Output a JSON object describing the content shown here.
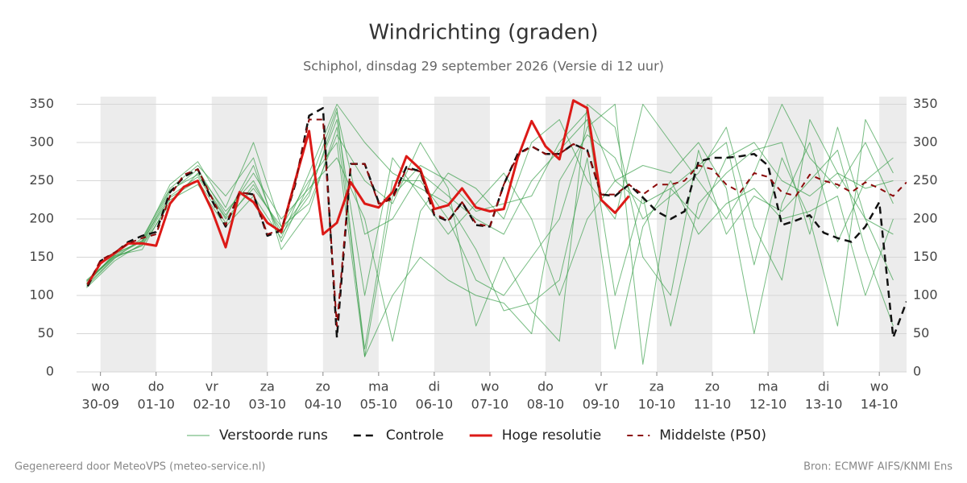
{
  "chart_data": {
    "type": "line",
    "title": "Windrichting (graden)",
    "subtitle": "Schiphol, dinsdag 29 september 2026 (Versie di 12 uur)",
    "xlim": [
      -0.43,
      14.49
    ],
    "ylim": [
      0,
      360
    ],
    "yticks": [
      0,
      50,
      100,
      150,
      200,
      250,
      300,
      350
    ],
    "xticks": [
      {
        "value": 0,
        "label": "wo"
      },
      {
        "value": 1,
        "label": "do"
      },
      {
        "value": 2,
        "label": "vr"
      },
      {
        "value": 3,
        "label": "za"
      },
      {
        "value": 4,
        "label": "zo"
      },
      {
        "value": 5,
        "label": "ma"
      },
      {
        "value": 6,
        "label": "di"
      },
      {
        "value": 7,
        "label": "wo"
      },
      {
        "value": 8,
        "label": "do"
      },
      {
        "value": 9,
        "label": "vr"
      },
      {
        "value": 10,
        "label": "za"
      },
      {
        "value": 11,
        "label": "zo"
      },
      {
        "value": 12,
        "label": "ma"
      },
      {
        "value": 13,
        "label": "di"
      },
      {
        "value": 14,
        "label": "wo"
      }
    ],
    "xtick_dates": [
      "30-09",
      "01-10",
      "02-10",
      "03-10",
      "04-10",
      "05-10",
      "06-10",
      "07-10",
      "08-10",
      "09-10",
      "10-10",
      "11-10",
      "12-10",
      "13-10",
      "14-10"
    ],
    "grid": true,
    "legend_position": "bottom",
    "ensemble": {
      "name": "Verstoorde runs",
      "color": "#2f9a41",
      "x": [
        -0.25,
        0.25,
        0.75,
        1.25,
        1.75,
        2.25,
        2.75,
        3.25,
        3.75,
        4.25,
        4.75,
        5.25,
        5.75,
        6.25,
        6.75,
        7.25,
        7.75,
        8.25,
        8.75,
        9.25,
        9.75,
        10.25,
        10.75,
        11.25,
        11.75,
        12.25,
        12.75,
        13.25,
        13.75,
        14.25
      ],
      "members": [
        [
          115,
          155,
          170,
          230,
          255,
          200,
          240,
          190,
          250,
          300,
          20,
          230,
          270,
          250,
          210,
          220,
          230,
          300,
          340,
          250,
          220,
          240,
          200,
          280,
          300,
          250,
          230,
          260,
          240,
          250
        ],
        [
          118,
          150,
          165,
          220,
          260,
          210,
          250,
          180,
          230,
          340,
          180,
          200,
          260,
          230,
          200,
          180,
          250,
          290,
          330,
          100,
          230,
          60,
          220,
          260,
          290,
          300,
          180,
          320,
          200,
          120
        ],
        [
          112,
          148,
          175,
          240,
          270,
          230,
          280,
          160,
          210,
          320,
          30,
          250,
          250,
          200,
          120,
          100,
          150,
          200,
          320,
          350,
          10,
          240,
          270,
          300,
          140,
          280,
          200,
          60,
          330,
          260
        ],
        [
          120,
          152,
          160,
          225,
          245,
          190,
          230,
          175,
          260,
          350,
          300,
          260,
          240,
          220,
          160,
          80,
          90,
          120,
          280,
          30,
          190,
          250,
          180,
          220,
          240,
          200,
          210,
          230,
          100,
          200
        ],
        [
          110,
          145,
          168,
          235,
          265,
          205,
          260,
          200,
          240,
          280,
          200,
          40,
          210,
          260,
          240,
          200,
          300,
          330,
          250,
          200,
          350,
          300,
          250,
          200,
          260,
          350,
          280,
          240,
          300,
          220
        ],
        [
          116,
          153,
          172,
          245,
          275,
          215,
          300,
          190,
          220,
          310,
          250,
          220,
          300,
          240,
          60,
          150,
          80,
          40,
          350,
          320,
          150,
          100,
          290,
          180,
          230,
          210,
          250,
          290,
          160,
          60
        ],
        [
          114,
          149,
          166,
          228,
          250,
          195,
          245,
          185,
          235,
          330,
          100,
          280,
          230,
          180,
          220,
          260,
          200,
          100,
          200,
          250,
          270,
          260,
          300,
          240,
          50,
          220,
          300,
          170,
          250,
          280
        ],
        [
          119,
          151,
          171,
          238,
          258,
          202,
          270,
          170,
          245,
          345,
          20,
          100,
          150,
          120,
          100,
          90,
          50,
          250,
          310,
          280,
          200,
          230,
          260,
          320,
          190,
          120,
          330,
          260,
          200,
          180
        ]
      ]
    },
    "series": [
      {
        "name": "Controle",
        "color": "#111111",
        "dash": "9 6",
        "width": 2.5,
        "x": [
          -0.23,
          0,
          0.25,
          0.5,
          0.75,
          1,
          1.25,
          1.5,
          1.75,
          2,
          2.25,
          2.5,
          2.75,
          3,
          3.25,
          3.5,
          3.75,
          4,
          4.25,
          4.5,
          4.75,
          5,
          5.25,
          5.5,
          5.75,
          6,
          6.25,
          6.5,
          6.75,
          7,
          7.25,
          7.5,
          7.75,
          8,
          8.25,
          8.5,
          8.75,
          9,
          9.25,
          9.5,
          9.75,
          10,
          10.25,
          10.5,
          10.75,
          11,
          11.25,
          11.5,
          11.75,
          12,
          12.25,
          12.5,
          12.75,
          13,
          13.25,
          13.5,
          13.75,
          14,
          14.25,
          14.49
        ],
        "values": [
          112,
          145,
          155,
          170,
          178,
          183,
          235,
          255,
          265,
          225,
          190,
          235,
          232,
          178,
          185,
          245,
          335,
          345,
          45,
          272,
          272,
          222,
          228,
          268,
          262,
          205,
          197,
          222,
          192,
          190,
          245,
          285,
          295,
          285,
          285,
          298,
          290,
          232,
          230,
          245,
          228,
          210,
          200,
          210,
          275,
          280,
          280,
          282,
          285,
          270,
          192,
          198,
          205,
          182,
          175,
          170,
          190,
          222,
          45,
          92
        ]
      },
      {
        "name": "Hoge resolutie",
        "color": "#dc1a17",
        "dash": "",
        "width": 3,
        "x": [
          -0.23,
          0,
          0.25,
          0.5,
          0.75,
          1,
          1.25,
          1.5,
          1.75,
          2,
          2.25,
          2.5,
          2.75,
          3,
          3.25,
          3.5,
          3.75,
          4,
          4.25,
          4.5,
          4.75,
          5,
          5.25,
          5.5,
          5.75,
          6,
          6.25,
          6.5,
          6.75,
          7,
          7.25,
          7.5,
          7.75,
          8,
          8.25,
          8.5,
          8.75,
          9,
          9.25,
          9.5
        ],
        "values": [
          115,
          142,
          155,
          168,
          168,
          165,
          220,
          242,
          250,
          212,
          163,
          235,
          222,
          195,
          183,
          250,
          315,
          180,
          195,
          248,
          220,
          215,
          235,
          282,
          265,
          213,
          218,
          240,
          215,
          210,
          213,
          280,
          328,
          295,
          278,
          355,
          345,
          225,
          208,
          230
        ]
      },
      {
        "name": "Middelste (P50)",
        "color": "#8b0a0a",
        "dash": "7 6",
        "width": 2,
        "x": [
          -0.23,
          0,
          0.25,
          0.5,
          0.75,
          1,
          1.25,
          1.5,
          1.75,
          2,
          2.25,
          2.5,
          2.75,
          3,
          3.25,
          3.5,
          3.75,
          4,
          4.25,
          4.5,
          4.75,
          5,
          5.25,
          5.5,
          5.75,
          6,
          6.25,
          6.5,
          6.75,
          7,
          7.25,
          7.5,
          7.75,
          8,
          8.25,
          8.5,
          8.75,
          9,
          9.25,
          9.5,
          9.75,
          10,
          10.25,
          10.5,
          10.75,
          11,
          11.25,
          11.5,
          11.75,
          12,
          12.25,
          12.5,
          12.75,
          13,
          13.25,
          13.5,
          13.75,
          14,
          14.25,
          14.49
        ],
        "values": [
          114,
          146,
          156,
          168,
          175,
          180,
          230,
          258,
          265,
          228,
          192,
          235,
          232,
          180,
          186,
          248,
          330,
          330,
          60,
          272,
          272,
          220,
          226,
          266,
          262,
          207,
          198,
          222,
          194,
          190,
          245,
          283,
          295,
          285,
          285,
          298,
          290,
          232,
          232,
          245,
          232,
          245,
          245,
          250,
          270,
          265,
          245,
          235,
          260,
          255,
          235,
          230,
          258,
          250,
          245,
          235,
          248,
          240,
          230,
          248
        ]
      }
    ]
  },
  "footer_left": "Gegenereerd door MeteoVPS (meteo-service.nl)",
  "footer_right": "Bron: ECMWF AIFS/KNMI Ens"
}
